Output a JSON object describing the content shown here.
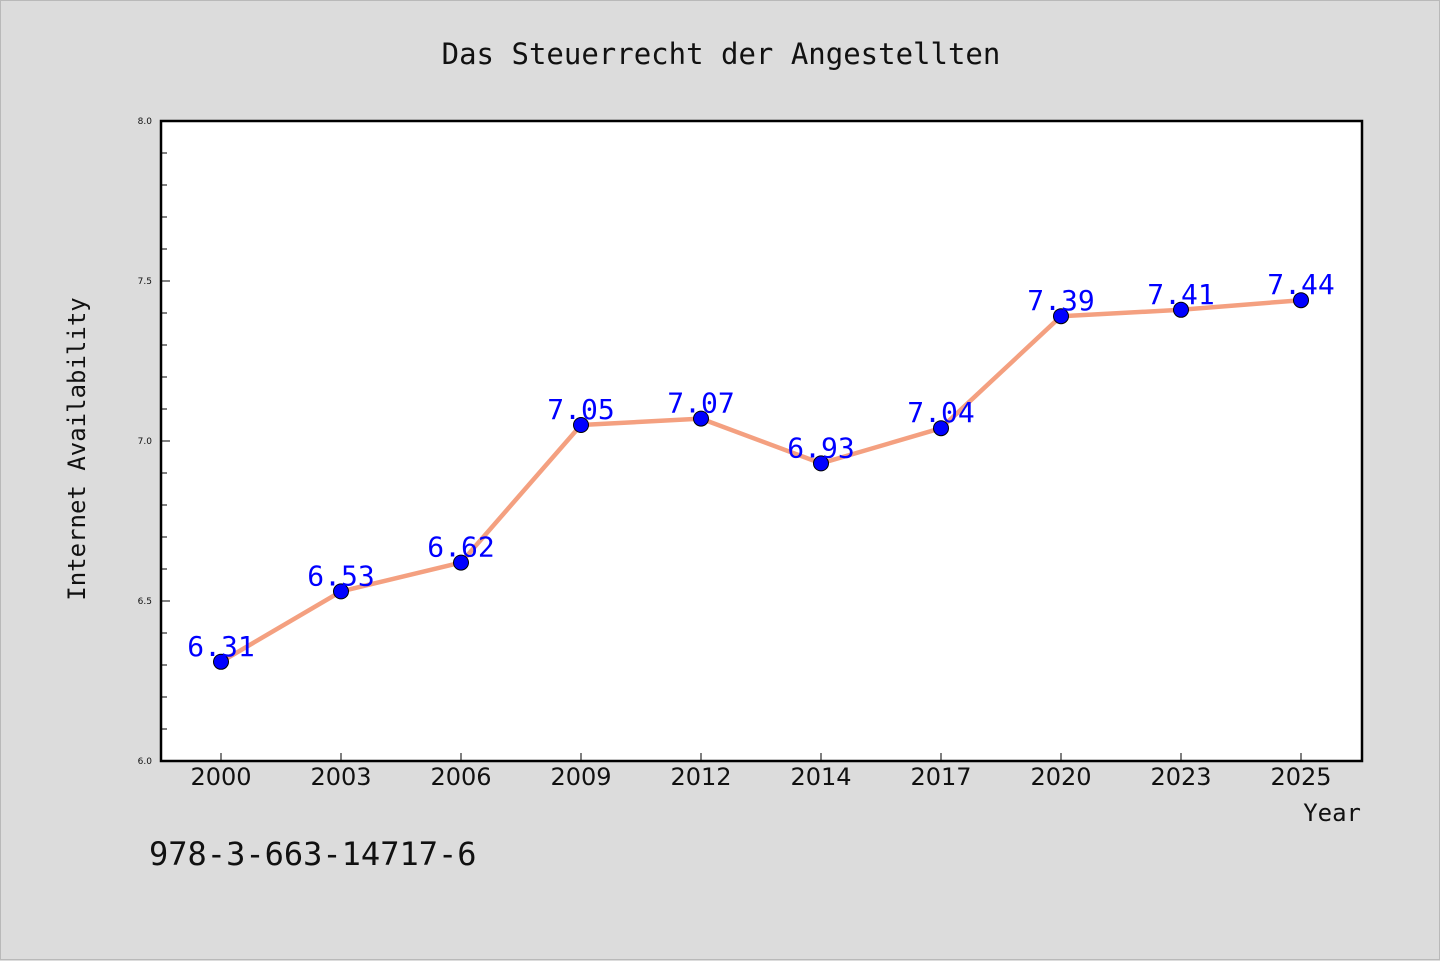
{
  "chart_data": {
    "type": "line",
    "title": "Das Steuerrecht der Angestellten",
    "xlabel": "Year",
    "ylabel": "Internet Availability",
    "categories": [
      "2000",
      "2003",
      "2006",
      "2009",
      "2012",
      "2014",
      "2017",
      "2020",
      "2023",
      "2025"
    ],
    "series": [
      {
        "values": [
          6.31,
          6.53,
          6.62,
          7.05,
          7.07,
          6.93,
          7.04,
          7.39,
          7.41,
          7.44
        ],
        "data_labels": [
          "6.31",
          "6.53",
          "6.62",
          "7.05",
          "7.07",
          "6.93",
          "7.04",
          "7.39",
          "7.41",
          "7.44"
        ]
      }
    ],
    "ylim": [
      6.0,
      8.0
    ],
    "y_ticks": [
      "6.0",
      "6.5",
      "7.0",
      "7.5",
      "8.0"
    ],
    "y_tick_values": [
      6.0,
      6.5,
      7.0,
      7.5,
      8.0
    ],
    "grid": false,
    "legend": "none",
    "colors": {
      "line": "#f4a080",
      "marker": "#0000ff",
      "data_label": "#0000ff",
      "figure_background": "#dcdcdc",
      "plot_background": "#ffffff"
    }
  },
  "footer": {
    "isbn": "978-3-663-14717-6"
  }
}
